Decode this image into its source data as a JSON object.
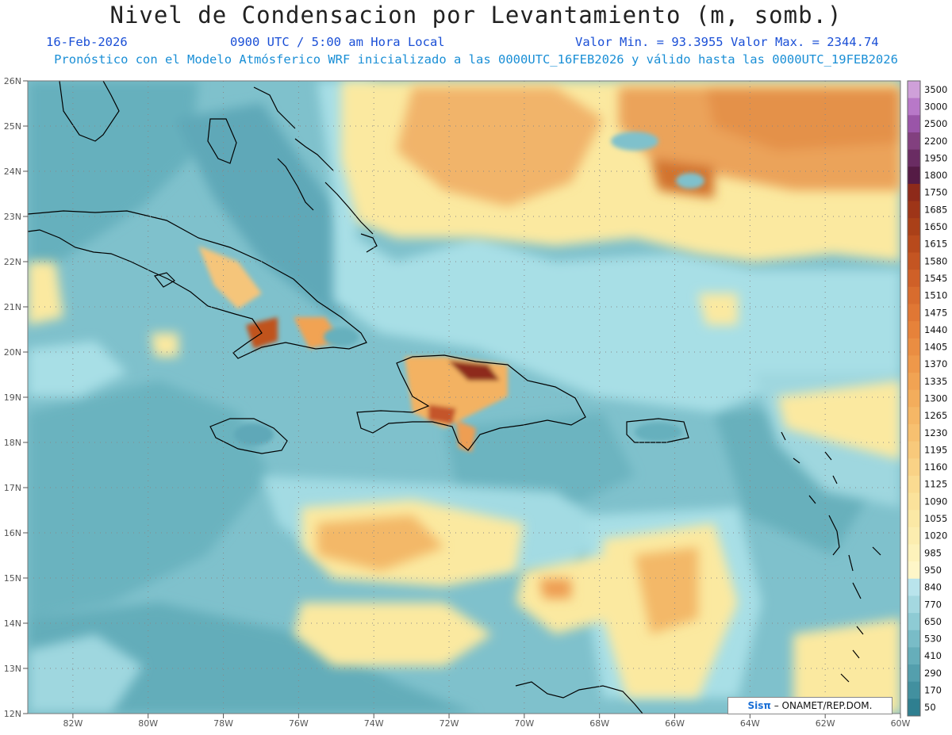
{
  "header": {
    "title": "Nivel de Condensacion por Levantamiento (m, somb.)",
    "date": "16-Feb-2026",
    "time": "0900 UTC / 5:00 am Hora Local",
    "min_max": "Valor Min. = 93.3955  Valor Max. = 2344.74",
    "model_info": "Pronóstico con el Modelo Atmósferico WRF inicializado a las 0000UTC_16FEB2026 y válido hasta las  0000UTC_19FEB2026"
  },
  "map": {
    "lat_labels": [
      "26N",
      "25N",
      "24N",
      "23N",
      "22N",
      "21N",
      "20N",
      "19N",
      "18N",
      "17N",
      "16N",
      "15N",
      "14N",
      "13N",
      "12N"
    ],
    "lon_labels": [
      "82W",
      "80W",
      "78W",
      "76W",
      "74W",
      "72W",
      "70W",
      "68W",
      "66W",
      "64W",
      "62W",
      "60W"
    ],
    "lat_range": [
      12,
      26
    ],
    "lon_range": [
      -83.2,
      -60
    ],
    "colors": {
      "low_teal": "#5ea8b8",
      "mid_teal": "#7fc1cc",
      "light_blue": "#a8dfe6",
      "yellow": "#fbe9a0",
      "orange": "#eba35a",
      "brown": "#a64a20",
      "coast": "#000000"
    }
  },
  "colorbar": {
    "levels": [
      "3500",
      "3000",
      "2500",
      "2200",
      "1950",
      "1800",
      "1750",
      "1685",
      "1650",
      "1615",
      "1580",
      "1545",
      "1510",
      "1475",
      "1440",
      "1405",
      "1370",
      "1335",
      "1300",
      "1265",
      "1230",
      "1195",
      "1160",
      "1125",
      "1090",
      "1055",
      "1020",
      "985",
      "950",
      "840",
      "770",
      "650",
      "530",
      "410",
      "290",
      "170",
      "50"
    ],
    "colors": [
      "#cfa0d9",
      "#b878c8",
      "#9a55a8",
      "#82407f",
      "#6a2c63",
      "#551b45",
      "#8e2a1a",
      "#9e3518",
      "#aa4018",
      "#b84a1c",
      "#c45522",
      "#cf6028",
      "#d86c2e",
      "#e07734",
      "#e6823a",
      "#ea8d42",
      "#ee984a",
      "#f1a353",
      "#f3ad5c",
      "#f5b766",
      "#f7c070",
      "#f8c97b",
      "#f9d286",
      "#fadb91",
      "#fbe29b",
      "#fbe8a5",
      "#fcedaf",
      "#fdf2bb",
      "#fef6c8",
      "#b9e4ec",
      "#a4d8e0",
      "#8ecbd4",
      "#79bcc7",
      "#66aeba",
      "#549fad",
      "#42909f",
      "#2f7f90"
    ]
  },
  "credit": {
    "logo": "Sisπ",
    "text": " – ONAMET/REP.DOM."
  }
}
